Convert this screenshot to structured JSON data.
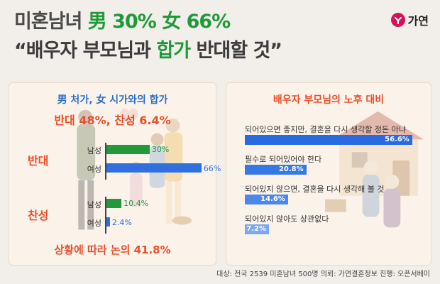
{
  "header": {
    "title_gray": "미혼남녀",
    "title_green": "男 30% 女 66%",
    "subtitle_open": "“배우자 부모님과 ",
    "subtitle_green": "합가",
    "subtitle_close": " 반대할 것”"
  },
  "brand": {
    "name": "가연"
  },
  "left_panel": {
    "title": "男 처가, 女 시가와의 합가",
    "subtitle": "반대 48%, 찬성 6.4%",
    "footer": "상황에 따라 논의 41.8%"
  },
  "right_panel": {
    "title": "배우자 부모님의 노후 대비"
  },
  "credits": "대상: 전국 2539 미혼남녀 500명    의뢰: 가연결혼정보    진행: 오픈서베이",
  "colors": {
    "green": "#22993b",
    "blue": "#2f6fe0",
    "orange": "#e8502a",
    "lightblue": "#4a84ee"
  },
  "chart_data": [
    {
      "type": "bar",
      "orientation": "horizontal",
      "groups": [
        {
          "label": "반대",
          "items": [
            {
              "label": "남성",
              "value": 30,
              "value_label": "30%",
              "color": "#22993b"
            },
            {
              "label": "여성",
              "value": 66,
              "value_label": "66%",
              "color": "#2f6fe0"
            }
          ]
        },
        {
          "label": "찬성",
          "items": [
            {
              "label": "남성",
              "value": 10.4,
              "value_label": "10.4%",
              "color": "#22993b"
            },
            {
              "label": "여성",
              "value": 2.4,
              "value_label": "2.4%",
              "color": "#2f6fe0"
            }
          ]
        }
      ],
      "xlim": [
        0,
        70
      ]
    },
    {
      "type": "bar",
      "orientation": "horizontal",
      "items": [
        {
          "label": "되어있으면 좋지만, 결혼을 다시 생각할 정돈 아냐",
          "value": 56.6,
          "value_label": "56.6%"
        },
        {
          "label": "필수로 되어있어야 한다",
          "value": 20.8,
          "value_label": "20.8%"
        },
        {
          "label": "되어있지 않으면, 결혼을 다시 생각해 볼 것",
          "value": 14.6,
          "value_label": "14.6%"
        },
        {
          "label": "되어있지 않아도 상관없다",
          "value": 7.2,
          "value_label": "7.2%"
        }
      ],
      "xlim": [
        0,
        60
      ]
    }
  ]
}
